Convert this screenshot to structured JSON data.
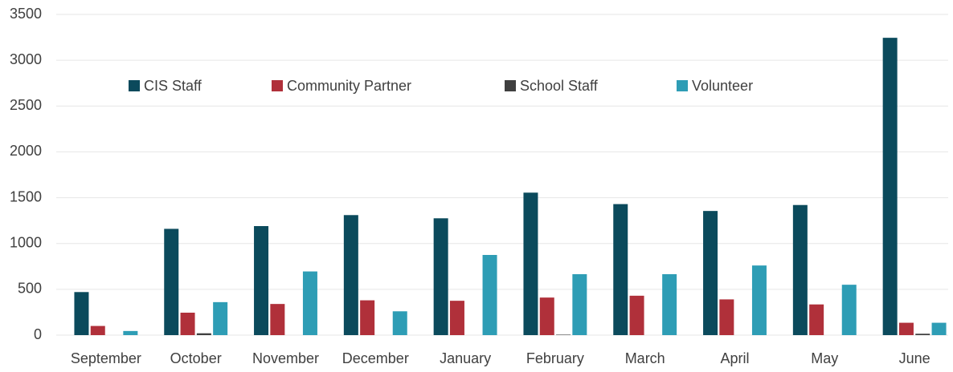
{
  "chart_data": {
    "type": "bar",
    "categories": [
      "September",
      "October",
      "November",
      "December",
      "January",
      "February",
      "March",
      "April",
      "May",
      "June"
    ],
    "series": [
      {
        "name": "CIS Staff",
        "color": "#0b4a5c",
        "values": [
          470,
          1160,
          1190,
          1310,
          1275,
          1555,
          1430,
          1355,
          1420,
          3245
        ]
      },
      {
        "name": "Community Partner",
        "color": "#b0303a",
        "values": [
          100,
          245,
          340,
          380,
          375,
          410,
          430,
          390,
          335,
          135
        ]
      },
      {
        "name": "School Staff",
        "color": "#3f3f3f",
        "values": [
          0,
          20,
          0,
          0,
          0,
          5,
          0,
          0,
          0,
          15
        ]
      },
      {
        "name": "Volunteer",
        "color": "#2e9db5",
        "values": [
          45,
          360,
          695,
          260,
          875,
          665,
          665,
          760,
          550,
          135
        ]
      }
    ],
    "ylim": [
      0,
      3500
    ],
    "yticks": [
      0,
      500,
      1000,
      1500,
      2000,
      2500,
      3000,
      3500
    ],
    "grid": true
  }
}
